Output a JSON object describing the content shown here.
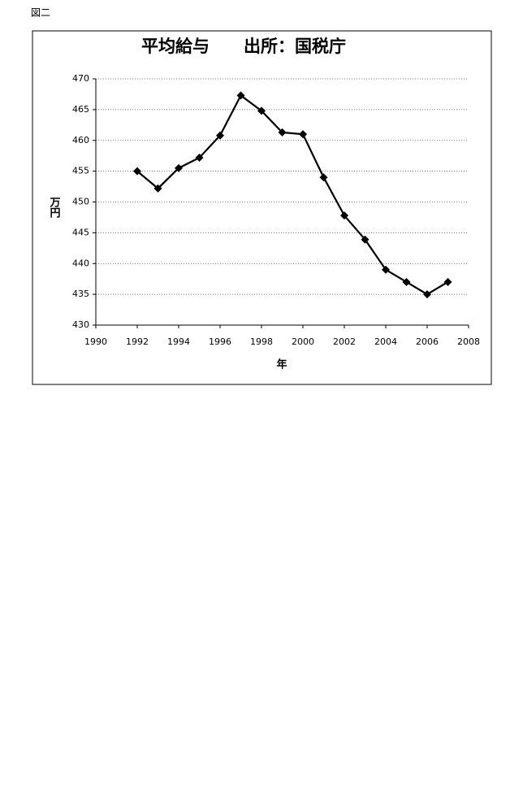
{
  "figure_label": "図二",
  "chart_data": {
    "type": "line",
    "title": "平均給与　　出所：国税庁",
    "x_label": "年",
    "y_label": "万円",
    "x": [
      1992,
      1993,
      1994,
      1995,
      1996,
      1997,
      1998,
      1999,
      2000,
      2001,
      2002,
      2003,
      2004,
      2005,
      2006,
      2007
    ],
    "series": [
      {
        "color": "#000000",
        "values": [
          455,
          452.2,
          455.5,
          457.2,
          460.8,
          467.3,
          464.8,
          461.3,
          461,
          454,
          447.8,
          443.9,
          439,
          437,
          435,
          437
        ]
      }
    ],
    "xlim": [
      1990,
      2008
    ],
    "xticks": [
      1990,
      1992,
      1994,
      1996,
      1998,
      2000,
      2002,
      2004,
      2006,
      2008
    ],
    "ylim": [
      430,
      470
    ],
    "yticks": [
      430,
      435,
      440,
      445,
      450,
      455,
      460,
      465,
      470
    ],
    "grid": true
  }
}
